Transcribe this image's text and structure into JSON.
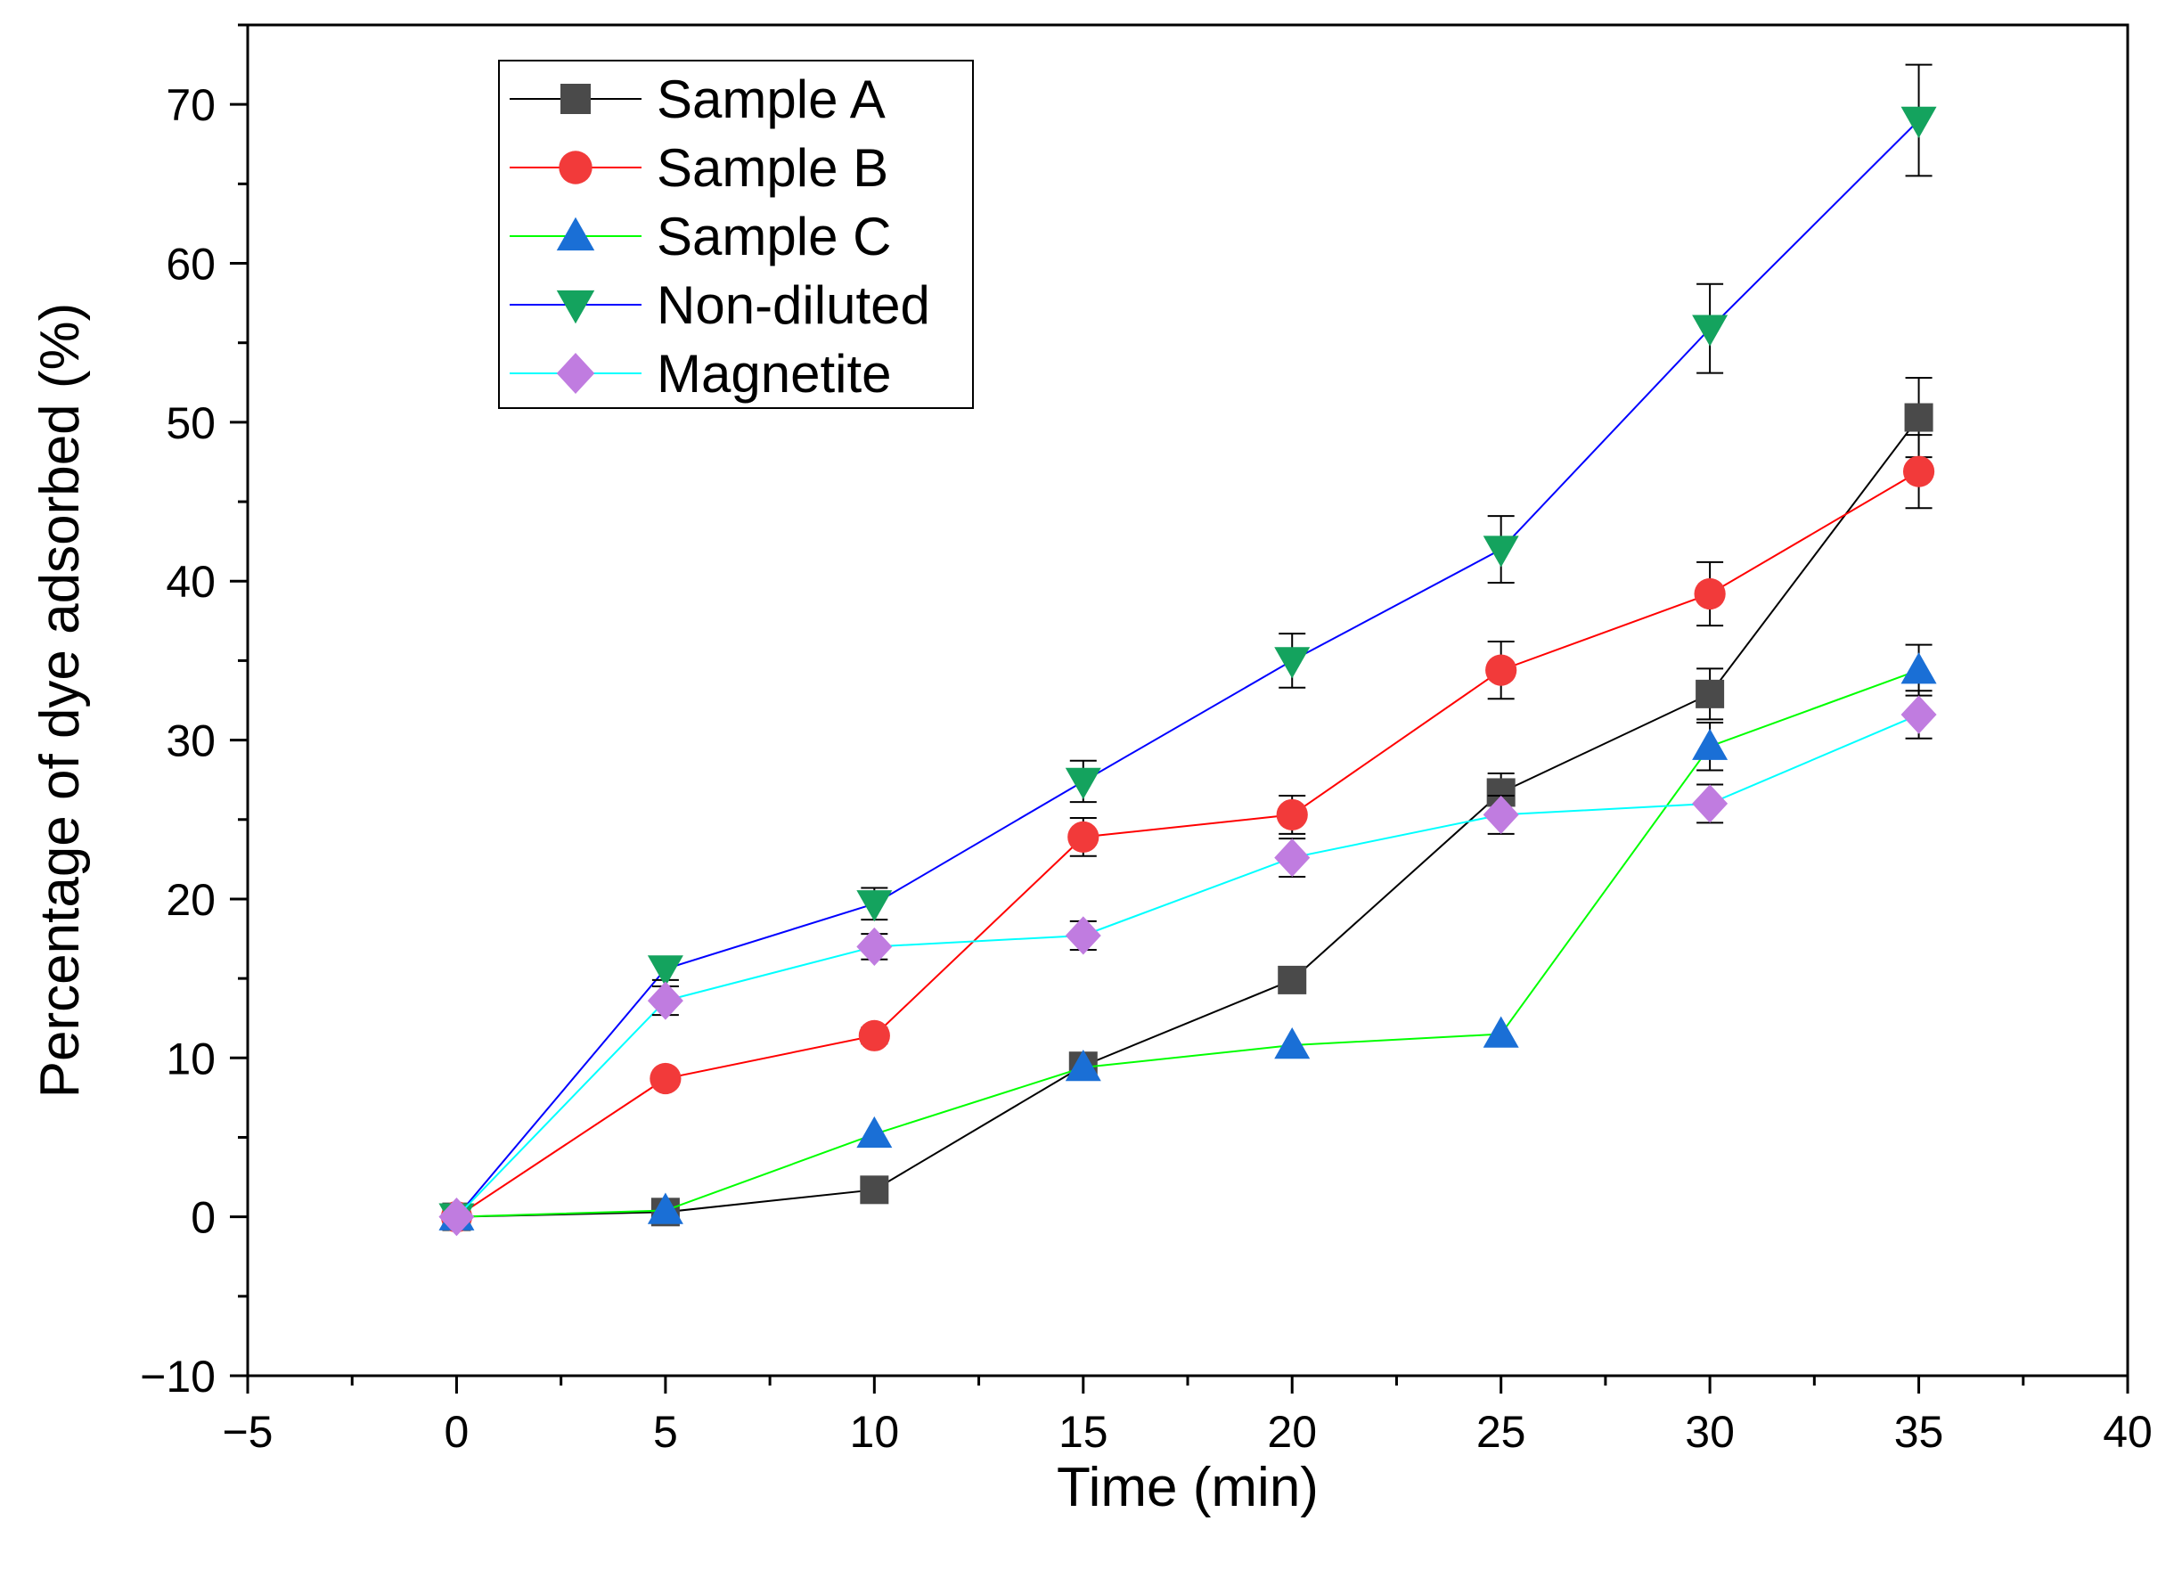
{
  "chart_data": {
    "type": "line",
    "title": "",
    "xlabel": "Time (min)",
    "ylabel": "Percentage of dye adsorbed (%)",
    "xlim": [
      -5,
      40
    ],
    "ylim": [
      -10,
      75
    ],
    "xticks": [
      -5,
      0,
      5,
      10,
      15,
      20,
      25,
      30,
      35,
      40
    ],
    "yticks": [
      -10,
      0,
      10,
      20,
      30,
      40,
      50,
      60,
      70
    ],
    "x_tick_labels": [
      "−5",
      "0",
      "5",
      "10",
      "15",
      "20",
      "25",
      "30",
      "35",
      "40"
    ],
    "y_tick_labels": [
      "−10",
      "0",
      "10",
      "20",
      "30",
      "40",
      "50",
      "60",
      "70"
    ],
    "grid": false,
    "legend_position": "top-left",
    "x": [
      0,
      5,
      10,
      15,
      20,
      25,
      30,
      35
    ],
    "series": [
      {
        "name": "Sample A",
        "line_color": "#000000",
        "marker_color": "#4a4a4a",
        "marker": "square",
        "values": [
          0,
          0.3,
          1.7,
          9.5,
          14.9,
          26.7,
          32.9,
          50.3
        ],
        "errors": [
          0,
          0,
          0,
          0.5,
          0,
          1.2,
          1.6,
          2.5
        ]
      },
      {
        "name": "Sample B",
        "line_color": "#ff0000",
        "marker_color": "#f23a3a",
        "marker": "circle",
        "values": [
          0,
          8.7,
          11.4,
          23.9,
          25.3,
          34.4,
          39.2,
          46.9
        ],
        "errors": [
          0,
          0,
          0.5,
          1.2,
          1.2,
          1.8,
          2.0,
          2.3
        ]
      },
      {
        "name": "Sample C",
        "line_color": "#00ff00",
        "marker_color": "#1a6fd6",
        "marker": "triangle-up",
        "values": [
          0,
          0.4,
          5.2,
          9.4,
          10.8,
          11.5,
          29.6,
          34.4
        ],
        "errors": [
          0,
          0,
          0,
          0,
          0,
          0,
          1.5,
          1.6
        ]
      },
      {
        "name": "Non-diluted",
        "line_color": "#0000ff",
        "marker_color": "#14a35e",
        "marker": "triangle-down",
        "values": [
          0,
          15.6,
          19.7,
          27.4,
          35.0,
          42.0,
          55.9,
          69.0
        ],
        "errors": [
          0,
          0.7,
          1.0,
          1.3,
          1.7,
          2.1,
          2.8,
          3.5
        ]
      },
      {
        "name": "Magnetite",
        "line_color": "#00ffff",
        "marker_color": "#c07ce0",
        "marker": "diamond",
        "values": [
          0,
          13.6,
          17.0,
          17.7,
          22.6,
          25.3,
          26.0,
          31.6
        ],
        "errors": [
          0,
          0.9,
          0.8,
          0.9,
          1.2,
          1.2,
          1.2,
          1.5
        ]
      }
    ]
  }
}
